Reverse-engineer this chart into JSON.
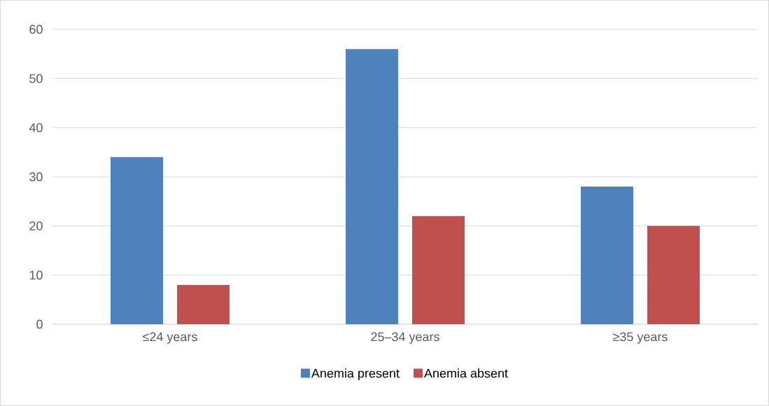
{
  "chart_data": {
    "type": "bar",
    "categories": [
      "≤24 years",
      "25–34 years",
      "≥35 years"
    ],
    "series": [
      {
        "name": "Anemia present",
        "color": "#4f81bd",
        "values": [
          34,
          56,
          28
        ]
      },
      {
        "name": "Anemia absent",
        "color": "#c0504d",
        "values": [
          8,
          22,
          20
        ]
      }
    ],
    "ylim": [
      0,
      60
    ],
    "yticks": [
      0,
      10,
      20,
      30,
      40,
      50,
      60
    ],
    "grid": "y",
    "legend": "bottom"
  }
}
